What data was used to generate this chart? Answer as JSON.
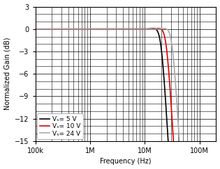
{
  "title": "",
  "xlabel": "Frequency (Hz)",
  "ylabel": "Normalized Gain (dB)",
  "xlim": [
    100000,
    200000000
  ],
  "ylim": [
    -15,
    3
  ],
  "yticks": [
    3,
    0,
    -3,
    -6,
    -9,
    -12,
    -15
  ],
  "legend": [
    {
      "label": "Vₛ= 5 V",
      "color": "#000000",
      "lw": 1.2
    },
    {
      "label": "Vₛ= 10 V",
      "color": "#dd0000",
      "lw": 1.2
    },
    {
      "label": "Vₛ= 24 V",
      "color": "#aaaaaa",
      "lw": 1.2
    }
  ],
  "curves": [
    {
      "color": "#000000",
      "lw": 1.2,
      "f3db": 20000000,
      "order": 6.0,
      "peak_gain": 0.3,
      "peak_f": 18000000
    },
    {
      "color": "#dd0000",
      "lw": 1.2,
      "f3db": 25000000,
      "order": 6.0,
      "peak_gain": 0.3,
      "peak_f": 22000000
    },
    {
      "color": "#aaaaaa",
      "lw": 1.2,
      "f3db": 32000000,
      "order": 6.0,
      "peak_gain": 0.25,
      "peak_f": 28000000
    }
  ],
  "grid_color": "#000000",
  "bg_color": "#ffffff",
  "font_size": 7,
  "xtick_labels": {
    "100000": "100k",
    "1000000": "1M",
    "10000000": "10M",
    "100000000": "100M"
  }
}
